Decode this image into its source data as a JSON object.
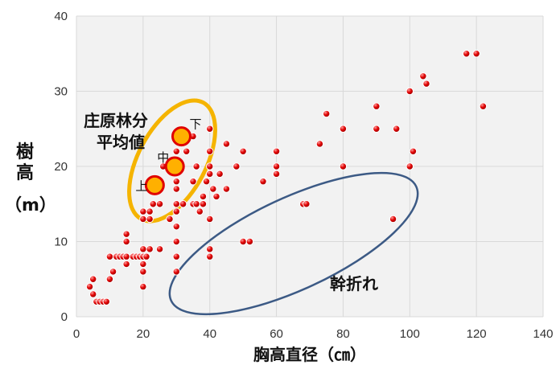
{
  "chart_data": {
    "type": "scatter",
    "xlabel": "胸高直径（㎝）",
    "ylabel_chars": [
      "樹",
      "高"
    ],
    "ylabel_unit": "（m）",
    "xlim": [
      0,
      140
    ],
    "ylim": [
      0,
      40
    ],
    "xticks": [
      0,
      20,
      40,
      60,
      80,
      100,
      120,
      140
    ],
    "yticks": [
      0,
      10,
      20,
      30,
      40
    ],
    "grid": true,
    "colors": {
      "point": "#e00000",
      "mean_fill": "#ffb000",
      "mean_stroke": "#e00000",
      "ellipse_mean": "#f5b400",
      "ellipse_broken": "#3c5a85",
      "grid": "#d9d9d9",
      "plot_bg": "#f2f2f2"
    },
    "points": [
      [
        4,
        4
      ],
      [
        5,
        3
      ],
      [
        5,
        5
      ],
      [
        6,
        2
      ],
      [
        7,
        2
      ],
      [
        8,
        2
      ],
      [
        9,
        2
      ],
      [
        10,
        5
      ],
      [
        10,
        8
      ],
      [
        11,
        6
      ],
      [
        12,
        8
      ],
      [
        13,
        8
      ],
      [
        14,
        8
      ],
      [
        15,
        7
      ],
      [
        15,
        8
      ],
      [
        15,
        10
      ],
      [
        15,
        11
      ],
      [
        17,
        8
      ],
      [
        18,
        8
      ],
      [
        19,
        8
      ],
      [
        20,
        4
      ],
      [
        20,
        6
      ],
      [
        20,
        7
      ],
      [
        20,
        8
      ],
      [
        20,
        9
      ],
      [
        20,
        13
      ],
      [
        20,
        14
      ],
      [
        21,
        8
      ],
      [
        22,
        9
      ],
      [
        22,
        13
      ],
      [
        22,
        14
      ],
      [
        23,
        15
      ],
      [
        25,
        9
      ],
      [
        25,
        15
      ],
      [
        26,
        20
      ],
      [
        28,
        13
      ],
      [
        30,
        6
      ],
      [
        30,
        8
      ],
      [
        30,
        10
      ],
      [
        30,
        12
      ],
      [
        30,
        14
      ],
      [
        30,
        15
      ],
      [
        30,
        17
      ],
      [
        30,
        18
      ],
      [
        30,
        20
      ],
      [
        30,
        22
      ],
      [
        32,
        15
      ],
      [
        33,
        22
      ],
      [
        35,
        15
      ],
      [
        35,
        18
      ],
      [
        35,
        24
      ],
      [
        36,
        15
      ],
      [
        36,
        20
      ],
      [
        37,
        14
      ],
      [
        38,
        15
      ],
      [
        38,
        16
      ],
      [
        39,
        18
      ],
      [
        40,
        8
      ],
      [
        40,
        9
      ],
      [
        40,
        13
      ],
      [
        40,
        19
      ],
      [
        40,
        20
      ],
      [
        40,
        22
      ],
      [
        40,
        25
      ],
      [
        41,
        17
      ],
      [
        42,
        16
      ],
      [
        43,
        19
      ],
      [
        45,
        17
      ],
      [
        45,
        23
      ],
      [
        48,
        20
      ],
      [
        50,
        10
      ],
      [
        50,
        22
      ],
      [
        52,
        10
      ],
      [
        56,
        18
      ],
      [
        60,
        19
      ],
      [
        60,
        20
      ],
      [
        60,
        22
      ],
      [
        68,
        15
      ],
      [
        69,
        15
      ],
      [
        73,
        23
      ],
      [
        75,
        27
      ],
      [
        80,
        20
      ],
      [
        80,
        25
      ],
      [
        90,
        25
      ],
      [
        90,
        28
      ],
      [
        95,
        13
      ],
      [
        96,
        25
      ],
      [
        100,
        20
      ],
      [
        100,
        30
      ],
      [
        101,
        22
      ],
      [
        104,
        32
      ],
      [
        105,
        31
      ],
      [
        117,
        35
      ],
      [
        120,
        35
      ],
      [
        122,
        28
      ]
    ],
    "mean_points": [
      {
        "label": "上",
        "x": 23.5,
        "y": 17.5
      },
      {
        "label": "中",
        "x": 29.5,
        "y": 20
      },
      {
        "label": "下",
        "x": 31.5,
        "y": 24
      }
    ],
    "annotations": {
      "mean_group_line1": "庄原林分",
      "mean_group_line2": "平均値",
      "broken": "幹折れ"
    }
  }
}
